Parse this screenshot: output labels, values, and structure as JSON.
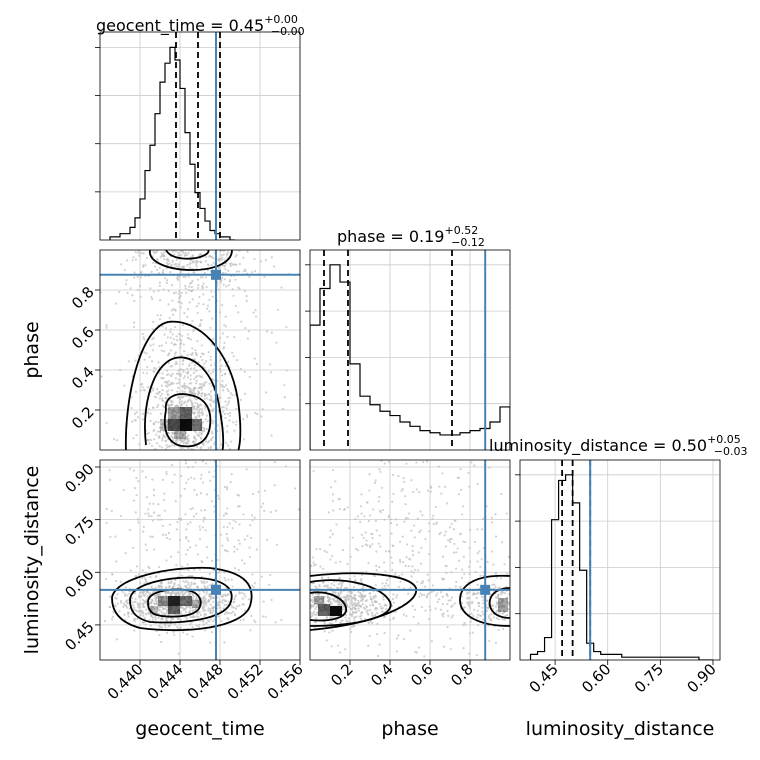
{
  "chart_data": {
    "type": "corner",
    "params": [
      "geocent_time",
      "phase",
      "luminosity_distance"
    ],
    "titles": [
      {
        "param": "geocent_time",
        "label": "geocent_time = 0.45",
        "sup": "+0.00",
        "sub": "−0.00"
      },
      {
        "param": "phase",
        "label": "phase = 0.19",
        "sup": "+0.52",
        "sub": "−0.12"
      },
      {
        "param": "luminosity_distance",
        "label": "luminosity_distance = 0.50",
        "sup": "+0.05",
        "sub": "−0.03"
      }
    ],
    "axis_labels": {
      "x": [
        "geocent_time",
        "phase",
        "luminosity_distance"
      ],
      "y": [
        "",
        "phase",
        "luminosity_distance"
      ]
    },
    "ticks": {
      "geocent_time": {
        "values": [
          0.44,
          0.444,
          0.448,
          0.452,
          0.456
        ],
        "labels": [
          "0.440",
          "0.444",
          "0.448",
          "0.452",
          "0.456"
        ]
      },
      "phase_x": {
        "values": [
          0.2,
          0.4,
          0.6,
          0.8
        ],
        "labels": [
          "0.2",
          "0.4",
          "0.6",
          "0.8"
        ]
      },
      "phase_y": {
        "values": [
          0.2,
          0.4,
          0.6,
          0.8
        ],
        "labels": [
          "0.2",
          "0.4",
          "0.6",
          "0.8"
        ]
      },
      "luminosity_distance": {
        "values": [
          0.45,
          0.6,
          0.75,
          0.9
        ],
        "labels": [
          "0.45",
          "0.60",
          "0.75",
          "0.90"
        ]
      }
    },
    "ranges": {
      "geocent_time": [
        0.436,
        0.456
      ],
      "phase": [
        0.0,
        1.0
      ],
      "luminosity_distance": [
        0.35,
        0.92
      ]
    },
    "truths": {
      "geocent_time": 0.4476,
      "phase": 0.876,
      "luminosity_distance": 0.55
    },
    "quantiles": {
      "geocent_time": [
        0.4436,
        0.4458,
        0.448
      ],
      "phase": [
        0.07,
        0.19,
        0.71
      ],
      "luminosity_distance": [
        0.47,
        0.5,
        0.55
      ]
    },
    "histograms": {
      "geocent_time": {
        "edges_start": 0.437,
        "bin_width": 0.0005,
        "counts": [
          1,
          1,
          2,
          2,
          4,
          7,
          13,
          22,
          30,
          40,
          50,
          56,
          61,
          57,
          48,
          34,
          24,
          15,
          10,
          6,
          3,
          2,
          1,
          1,
          0
        ]
      },
      "phase": {
        "edges_start": 0.0,
        "bin_width": 0.05,
        "counts": [
          58,
          75,
          86,
          78,
          40,
          25,
          21,
          18,
          16,
          13,
          11,
          9,
          8,
          7,
          7,
          8,
          9,
          10,
          13,
          20
        ]
      },
      "luminosity_distance": {
        "edges_start": 0.38,
        "bin_width": 0.02,
        "counts": [
          2,
          3,
          8,
          50,
          64,
          66,
          56,
          32,
          6,
          3,
          2,
          2,
          2,
          1,
          1,
          1,
          1,
          1,
          1,
          1,
          1,
          1,
          1,
          1,
          0,
          0
        ]
      }
    },
    "grid": true,
    "colors": {
      "truth": "#4682b4",
      "hist": "#000000",
      "points": "#bdbdbd",
      "density": "#000000"
    }
  }
}
